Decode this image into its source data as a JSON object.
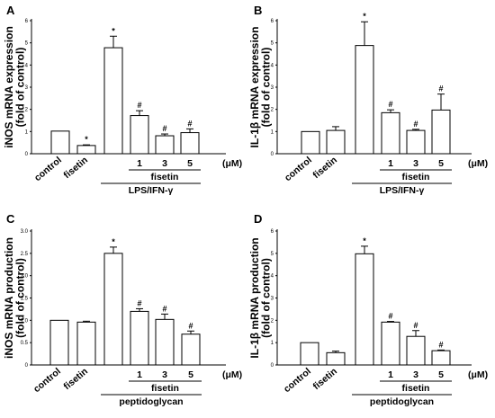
{
  "chart_data": [
    {
      "type": "bar",
      "panel": "A",
      "ylabel_line1": "iNOS mRNA expression",
      "ylabel_line2": "(fold of control)",
      "ylim": [
        0,
        6
      ],
      "ytick_labels": [
        "0",
        "1",
        "2",
        "3",
        "4",
        "5",
        "6"
      ],
      "categories": [
        "control",
        "fisetin",
        "",
        "1",
        "3",
        "5"
      ],
      "values": [
        1.02,
        0.37,
        4.78,
        1.72,
        0.81,
        0.95
      ],
      "errors": [
        0.0,
        0.03,
        0.52,
        0.22,
        0.08,
        0.17
      ],
      "significance": [
        "",
        "*",
        "*",
        "#",
        "#",
        "#"
      ],
      "group_inner_label": "fisetin",
      "group_outer_label": "LPS/IFN-γ",
      "unit_label": "(μM)"
    },
    {
      "type": "bar",
      "panel": "B",
      "ylabel_line1": "IL-1β mRNA expression",
      "ylabel_line2": "(fold of control)",
      "ylim": [
        0,
        6
      ],
      "ytick_labels": [
        "0",
        "1",
        "2",
        "3",
        "4",
        "5",
        "6"
      ],
      "categories": [
        "control",
        "fisetin",
        "",
        "1",
        "3",
        "5"
      ],
      "values": [
        1.0,
        1.05,
        4.88,
        1.85,
        1.05,
        1.97
      ],
      "errors": [
        0.0,
        0.17,
        1.07,
        0.13,
        0.05,
        0.72
      ],
      "significance": [
        "",
        "",
        "*",
        "#",
        "#",
        "#"
      ],
      "group_inner_label": "fisetin",
      "group_outer_label": "LPS/IFN-γ",
      "unit_label": "(μM)"
    },
    {
      "type": "bar",
      "panel": "C",
      "ylabel_line1": "iNOS mRNA production",
      "ylabel_line2": "(fold of control)",
      "ylim": [
        0,
        3
      ],
      "ytick_labels": [
        "0",
        "0.5",
        "1.0",
        "1.5",
        "2.0",
        "2.5",
        "3.0"
      ],
      "categories": [
        "control",
        "fisetin",
        "",
        "1",
        "3",
        "5"
      ],
      "values": [
        1.0,
        0.96,
        2.5,
        1.2,
        1.02,
        0.69
      ],
      "errors": [
        0.0,
        0.02,
        0.14,
        0.06,
        0.12,
        0.07
      ],
      "significance": [
        "",
        "",
        "*",
        "#",
        "#",
        "#"
      ],
      "group_inner_label": "fisetin",
      "group_outer_label": "peptidoglycan",
      "unit_label": "(μM)"
    },
    {
      "type": "bar",
      "panel": "D",
      "ylabel_line1": "IL-1β mRNA production",
      "ylabel_line2": "(fold of control)",
      "ylim": [
        0,
        6
      ],
      "ytick_labels": [
        "0",
        "1",
        "2",
        "3",
        "4",
        "5",
        "6"
      ],
      "categories": [
        "control",
        "fisetin",
        "",
        "1",
        "3",
        "5"
      ],
      "values": [
        1.0,
        0.55,
        4.98,
        1.92,
        1.28,
        0.64
      ],
      "errors": [
        0.0,
        0.07,
        0.34,
        0.03,
        0.26,
        0.03
      ],
      "significance": [
        "",
        "",
        "*",
        "#",
        "#",
        "#"
      ],
      "group_inner_label": "fisetin",
      "group_outer_label": "peptidoglycan",
      "unit_label": "(μM)"
    }
  ],
  "colors": {
    "bar_fill": "#ffffff",
    "stroke": "#000000"
  }
}
